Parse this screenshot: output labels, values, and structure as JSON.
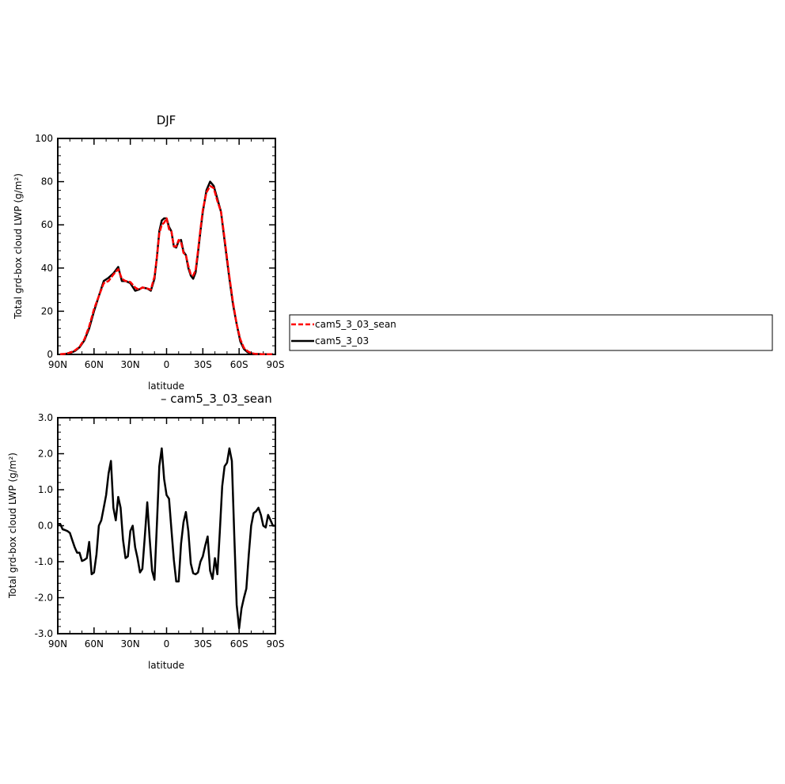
{
  "chart_data": [
    {
      "type": "line",
      "title": "DJF",
      "xlabel": "latitude",
      "ylabel": "Total grd-box cloud LWP (g/m²)",
      "xlim": [
        -90,
        90
      ],
      "ylim": [
        0,
        100
      ],
      "xticks": [
        -90,
        -60,
        -30,
        0,
        30,
        60,
        90
      ],
      "xtick_labels": [
        "90N",
        "60N",
        "30N",
        "0",
        "30S",
        "60S",
        "90S"
      ],
      "yticks": [
        0,
        20,
        40,
        60,
        80,
        100
      ],
      "ytick_labels": [
        "0",
        "20",
        "40",
        "60",
        "80",
        "100"
      ],
      "x": [
        -88,
        -84,
        -80,
        -76,
        -72,
        -68,
        -64,
        -60,
        -56,
        -52,
        -48,
        -44,
        -40,
        -37,
        -34,
        -30,
        -26,
        -23,
        -20,
        -16,
        -13,
        -10,
        -8,
        -6,
        -4,
        -2,
        0,
        2,
        4,
        6,
        8,
        10,
        12,
        14,
        16,
        18,
        20,
        22,
        24,
        26,
        28,
        30,
        33,
        36,
        39,
        42,
        45,
        47,
        49,
        52,
        55,
        58,
        61,
        64,
        67,
        70,
        73,
        76,
        79,
        82,
        85,
        88
      ],
      "series": [
        {
          "name": "cam5_3_03_sean",
          "color": "#ff0000",
          "dash": true,
          "values": [
            0.1,
            0.3,
            0.8,
            1.8,
            3.5,
            7,
            13,
            21,
            27,
            33,
            34,
            37,
            39.5,
            35,
            34,
            33.5,
            31,
            30,
            31,
            30.5,
            30,
            36,
            45,
            56,
            60,
            61,
            63,
            58,
            57,
            50,
            50,
            53,
            52,
            47,
            46,
            41,
            37,
            36.5,
            39,
            48,
            58,
            67,
            75,
            78,
            77,
            71,
            66,
            58,
            49,
            36,
            24,
            14,
            7,
            3,
            1.5,
            0.6,
            0.3,
            0.2,
            0.1,
            0.1,
            0.1,
            0.1
          ]
        },
        {
          "name": "cam5_3_03",
          "color": "#000000",
          "dash": false,
          "values": [
            0.1,
            0.2,
            0.6,
            1.5,
            3.3,
            6.5,
            12,
            20,
            27,
            34,
            35.5,
            37.5,
            40.5,
            34,
            34,
            33,
            29.5,
            30,
            31,
            30.5,
            29.5,
            35,
            45,
            57,
            62,
            63,
            63,
            59,
            57,
            50,
            49.5,
            52.5,
            53,
            47.5,
            46,
            40,
            36.5,
            35,
            38,
            47,
            57,
            66,
            76,
            80,
            78,
            72,
            66,
            57,
            48,
            35,
            23,
            14,
            6,
            2.5,
            1,
            0.5,
            0.2,
            0.2,
            0.1,
            0.1,
            0.1,
            0.1
          ]
        }
      ],
      "legend": [
        "cam5_3_03_sean",
        "cam5_3_03"
      ],
      "legend_placement": "right"
    },
    {
      "type": "line",
      "title": "– cam5_3_03_sean",
      "xlabel": "latitude",
      "ylabel": "Total grd-box cloud LWP (g/m²)",
      "xlim": [
        -90,
        90
      ],
      "ylim": [
        -3.0,
        3.0
      ],
      "xticks": [
        -90,
        -60,
        -30,
        0,
        30,
        60,
        90
      ],
      "xtick_labels": [
        "90N",
        "60N",
        "30N",
        "0",
        "30S",
        "60S",
        "90S"
      ],
      "yticks": [
        -3,
        -2,
        -1,
        0,
        1,
        2,
        3
      ],
      "ytick_labels": [
        "-3.0",
        "-2.0",
        "-1.0",
        "0.0",
        "1.0",
        "2.0",
        "3.0"
      ],
      "x": [
        -90,
        -88,
        -86,
        -84,
        -82,
        -80,
        -78,
        -76,
        -74,
        -72,
        -70,
        -68,
        -66,
        -64,
        -62,
        -60,
        -58,
        -56,
        -54,
        -52,
        -50,
        -48,
        -46,
        -44,
        -42,
        -40,
        -38,
        -36,
        -34,
        -32,
        -30,
        -28,
        -26,
        -24,
        -22,
        -20,
        -18,
        -16,
        -14,
        -12,
        -10,
        -8,
        -6,
        -4,
        -2,
        0,
        2,
        4,
        6,
        8,
        10,
        12,
        14,
        16,
        18,
        20,
        22,
        24,
        26,
        28,
        30,
        32,
        34,
        36,
        38,
        40,
        42,
        44,
        46,
        48,
        50,
        52,
        54,
        56,
        58,
        60,
        62,
        64,
        66,
        68,
        70,
        72,
        74,
        76,
        78,
        80,
        82,
        84,
        86,
        88,
        90
      ],
      "series": [
        {
          "name": "",
          "color": "#000000",
          "dash": false,
          "values": [
            0.05,
            0.05,
            -0.1,
            -0.12,
            -0.15,
            -0.2,
            -0.4,
            -0.6,
            -0.75,
            -0.75,
            -0.98,
            -0.95,
            -0.9,
            -0.45,
            -1.35,
            -1.3,
            -0.8,
            0.0,
            0.15,
            0.5,
            0.85,
            1.45,
            1.8,
            0.5,
            0.15,
            0.8,
            0.5,
            -0.4,
            -0.9,
            -0.85,
            -0.15,
            0.0,
            -0.6,
            -0.9,
            -1.3,
            -1.2,
            -0.3,
            0.65,
            -0.35,
            -1.25,
            -1.5,
            0.05,
            1.65,
            2.15,
            1.3,
            0.85,
            0.75,
            -0.1,
            -0.95,
            -1.55,
            -1.55,
            -0.5,
            0.1,
            0.38,
            -0.15,
            -1.05,
            -1.32,
            -1.35,
            -1.3,
            -1.0,
            -0.85,
            -0.55,
            -0.3,
            -1.25,
            -1.48,
            -0.9,
            -1.35,
            -0.2,
            1.1,
            1.65,
            1.75,
            2.15,
            1.8,
            -0.3,
            -2.2,
            -2.85,
            -2.3,
            -2.0,
            -1.75,
            -0.8,
            0.0,
            0.35,
            0.4,
            0.5,
            0.3,
            0.0,
            -0.05,
            0.3,
            0.15,
            0.0,
            0.0
          ]
        }
      ]
    }
  ]
}
